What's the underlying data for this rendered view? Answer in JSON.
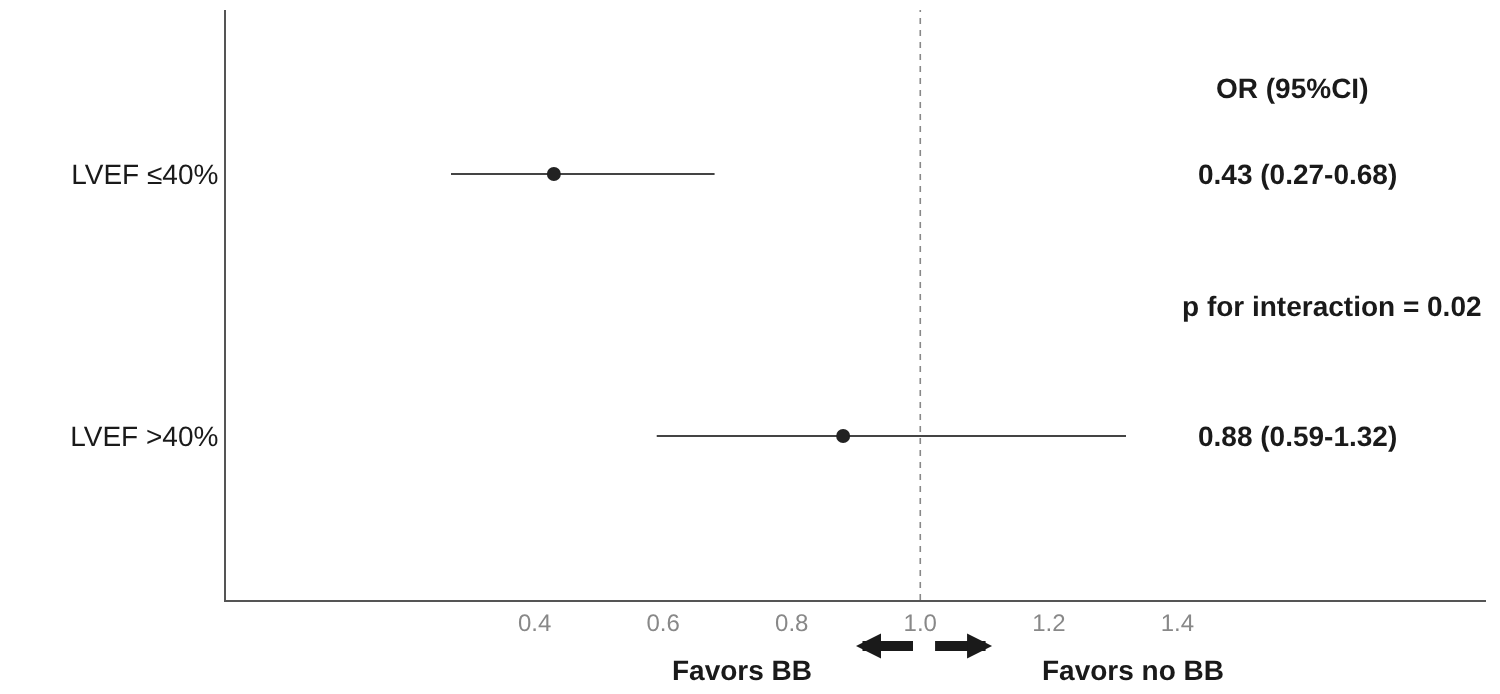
{
  "chart_data": {
    "type": "scatter",
    "orientation": "horizontal",
    "categories": [
      "LVEF ≤40%",
      "LVEF >40%"
    ],
    "series": [
      {
        "color": "#222222",
        "values": [
          0.43,
          0.88
        ],
        "errors": [
          [
            0.27,
            0.68
          ],
          [
            0.59,
            1.32
          ]
        ]
      }
    ],
    "xlim": [
      -0.08,
      1.88
    ],
    "xticks": [
      {
        "value": 0.4,
        "label": "0.4"
      },
      {
        "value": 0.6,
        "label": "0.6"
      },
      {
        "value": 0.8,
        "label": "0.8"
      },
      {
        "value": 1.0,
        "label": "1.0"
      },
      {
        "value": 1.2,
        "label": "1.2"
      },
      {
        "value": 1.4,
        "label": "1.4"
      }
    ],
    "ref_lines": [
      {
        "axis": "x",
        "value": 1.0,
        "color": "#888888",
        "line_style": "dotted"
      }
    ],
    "annotations": [
      "OR (95%CI)",
      "0.43 (0.27-0.68)",
      "p for interaction = 0.02",
      "0.88 (0.59-1.32)",
      "Favors BB",
      "Favors no BB"
    ],
    "marker": "circle"
  }
}
